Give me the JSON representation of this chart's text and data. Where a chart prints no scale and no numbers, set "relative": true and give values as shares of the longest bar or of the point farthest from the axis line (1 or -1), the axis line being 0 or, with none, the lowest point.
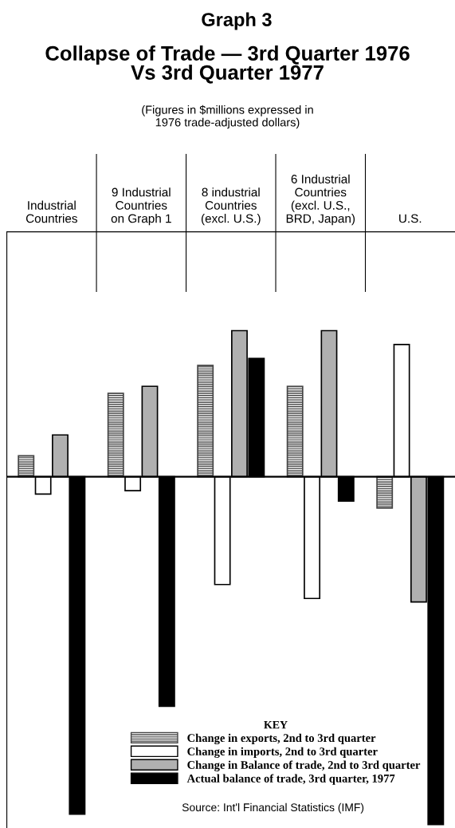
{
  "chart_data": {
    "type": "bar",
    "relative": true,
    "title": "Graph 3",
    "subtitle": "Collapse of Trade — 3rd Quarter 1976\nVs 3rd Quarter 1977",
    "annotations": [
      "(Figures in $millions expressed in\n1976 trade-adjusted dollars)",
      "Source: Int'l Financial Statistics (IMF)"
    ],
    "categories": [
      "Industrial\nCountries",
      "9 Industrial\nCountries\non Graph 1",
      "8 industrial\nCountries\n(excl. U.S.)",
      "6 Industrial\nCountries\n(excl. U.S.,\nBRD, Japan)",
      "U.S."
    ],
    "series": [
      {
        "name": "Change in exports, 2nd to 3rd quarter",
        "color": "#444444",
        "values": [
          0.06,
          0.24,
          0.32,
          0.26,
          -0.09
        ]
      },
      {
        "name": "Change in imports, 2nd to 3rd quarter",
        "color": "#ffffff",
        "values": [
          -0.05,
          -0.04,
          -0.31,
          -0.35,
          0.38
        ]
      },
      {
        "name": "Change in Balance of trade, 2nd to 3rd quarter",
        "color": "#b0b0b0",
        "values": [
          0.12,
          0.26,
          0.42,
          0.42,
          -0.36
        ]
      },
      {
        "name": "Actual balance of trade, 3rd quarter, 1977",
        "color": "#000000",
        "values": [
          -0.97,
          -0.66,
          0.34,
          -0.07,
          -1
        ]
      }
    ],
    "legend": "bottom",
    "legend_title": "KEY",
    "grid": false
  }
}
